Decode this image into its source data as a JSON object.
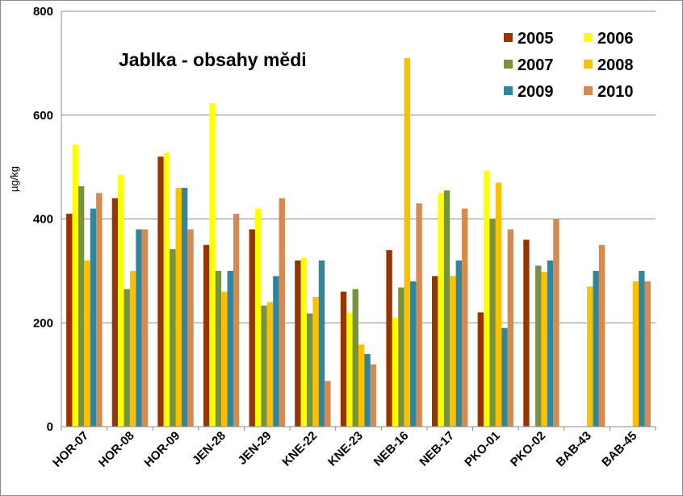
{
  "chart_data": {
    "type": "bar",
    "title": "Jablka - obsahy mědi",
    "ylabel": "µg/kg",
    "xlabel": "",
    "ylim": [
      0,
      800
    ],
    "yticks": [
      "0",
      "200",
      "400",
      "600",
      "800"
    ],
    "grid": true,
    "legend_position": "top-right",
    "categories": [
      "HOR-07",
      "HOR-08",
      "HOR-09",
      "JEN-28",
      "JEN-29",
      "KNE-22",
      "KNE-23",
      "NEB-16",
      "NEB-17",
      "PKO-01",
      "PKO-02",
      "BAB-43",
      "BAB-45"
    ],
    "series": [
      {
        "name": "2005",
        "color": "#993300",
        "values": [
          410,
          440,
          520,
          350,
          380,
          320,
          260,
          340,
          290,
          220,
          360,
          null,
          null
        ]
      },
      {
        "name": "2006",
        "color": "#ffff00",
        "values": [
          543,
          485,
          528,
          623,
          420,
          325,
          220,
          210,
          450,
          493,
          null,
          null,
          null
        ]
      },
      {
        "name": "2007",
        "color": "#77933c",
        "values": [
          463,
          265,
          342,
          300,
          233,
          218,
          265,
          268,
          455,
          400,
          310,
          null,
          null
        ]
      },
      {
        "name": "2008",
        "color": "#ffc000",
        "values": [
          320,
          300,
          460,
          260,
          240,
          250,
          158,
          710,
          290,
          470,
          298,
          270,
          280
        ]
      },
      {
        "name": "2009",
        "color": "#31859c",
        "values": [
          420,
          380,
          460,
          300,
          290,
          320,
          140,
          280,
          320,
          190,
          320,
          300,
          300
        ]
      },
      {
        "name": "2010",
        "color": "#d78a4f",
        "values": [
          450,
          380,
          380,
          410,
          440,
          88,
          120,
          430,
          420,
          380,
          400,
          350,
          280
        ]
      }
    ]
  }
}
